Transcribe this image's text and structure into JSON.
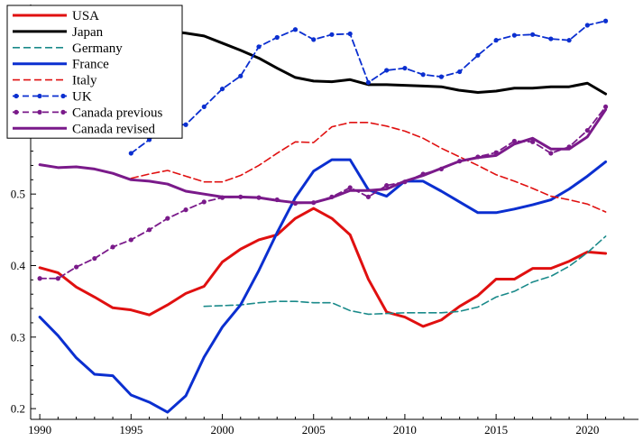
{
  "chart_data": {
    "type": "line",
    "title": "",
    "xlabel": "",
    "ylabel": "",
    "xlim": [
      1989.5,
      2022.8
    ],
    "ylim": [
      0.185,
      0.765
    ],
    "xticks": [
      1990,
      1995,
      2000,
      2005,
      2010,
      2015,
      2020
    ],
    "yticks": [
      0.2,
      0.3,
      0.4,
      0.5,
      0.6,
      0.7
    ],
    "legend_position": "top-left",
    "grid": false,
    "series": [
      {
        "name": "USA",
        "color": "#e01010",
        "style": "solid",
        "width": 3,
        "marker": "none",
        "x": [
          1990,
          1991,
          1992,
          1993,
          1994,
          1995,
          1996,
          1997,
          1998,
          1999,
          2000,
          2001,
          2002,
          2003,
          2004,
          2005,
          2006,
          2007,
          2008,
          2009,
          2010,
          2011,
          2012,
          2013,
          2014,
          2015,
          2016,
          2017,
          2018,
          2019,
          2020,
          2021
        ],
        "y": [
          0.397,
          0.39,
          0.37,
          0.356,
          0.341,
          0.338,
          0.331,
          0.345,
          0.361,
          0.371,
          0.405,
          0.423,
          0.436,
          0.443,
          0.466,
          0.48,
          0.466,
          0.443,
          0.381,
          0.335,
          0.328,
          0.315,
          0.324,
          0.343,
          0.358,
          0.381,
          0.381,
          0.396,
          0.396,
          0.406,
          0.419,
          0.417
        ]
      },
      {
        "name": "Japan",
        "color": "#000000",
        "style": "solid",
        "width": 3,
        "marker": "none",
        "x": [
          1994,
          1995,
          1996,
          1997,
          1998,
          1999,
          2000,
          2001,
          2002,
          2003,
          2004,
          2005,
          2006,
          2007,
          2008,
          2009,
          2010,
          2011,
          2012,
          2013,
          2014,
          2015,
          2016,
          2017,
          2018,
          2019,
          2020,
          2021
        ],
        "y": [
          0.754,
          0.742,
          0.733,
          0.728,
          0.725,
          0.721,
          0.711,
          0.701,
          0.69,
          0.676,
          0.663,
          0.658,
          0.657,
          0.66,
          0.653,
          0.653,
          0.652,
          0.651,
          0.65,
          0.645,
          0.642,
          0.644,
          0.648,
          0.648,
          0.65,
          0.65,
          0.655,
          0.64
        ]
      },
      {
        "name": "Germany",
        "color": "#1a8a8a",
        "style": "dash",
        "width": 1.6,
        "marker": "none",
        "x": [
          1999,
          2000,
          2001,
          2002,
          2003,
          2004,
          2005,
          2006,
          2007,
          2008,
          2009,
          2010,
          2011,
          2012,
          2013,
          2014,
          2015,
          2016,
          2017,
          2018,
          2019,
          2020,
          2021
        ],
        "y": [
          0.343,
          0.344,
          0.345,
          0.348,
          0.35,
          0.35,
          0.348,
          0.348,
          0.337,
          0.332,
          0.333,
          0.334,
          0.334,
          0.334,
          0.336,
          0.342,
          0.356,
          0.364,
          0.377,
          0.385,
          0.399,
          0.418,
          0.441
        ]
      },
      {
        "name": "France",
        "color": "#0b2fd0",
        "style": "solid",
        "width": 3,
        "marker": "none",
        "x": [
          1990,
          1991,
          1992,
          1993,
          1994,
          1995,
          1996,
          1997,
          1998,
          1999,
          2000,
          2001,
          2002,
          2003,
          2004,
          2005,
          2006,
          2007,
          2008,
          2009,
          2010,
          2011,
          2012,
          2013,
          2014,
          2015,
          2016,
          2017,
          2018,
          2019,
          2020,
          2021
        ],
        "y": [
          0.328,
          0.302,
          0.271,
          0.248,
          0.246,
          0.219,
          0.209,
          0.195,
          0.218,
          0.272,
          0.314,
          0.345,
          0.393,
          0.446,
          0.495,
          0.532,
          0.548,
          0.548,
          0.506,
          0.497,
          0.518,
          0.518,
          0.504,
          0.489,
          0.474,
          0.474,
          0.479,
          0.485,
          0.492,
          0.507,
          0.525,
          0.545
        ]
      },
      {
        "name": "Italy",
        "color": "#e01010",
        "style": "dash",
        "width": 1.6,
        "marker": "none",
        "x": [
          1995,
          1996,
          1997,
          1998,
          1999,
          2000,
          2001,
          2002,
          2003,
          2004,
          2005,
          2006,
          2007,
          2008,
          2009,
          2010,
          2011,
          2012,
          2013,
          2014,
          2015,
          2016,
          2017,
          2018,
          2019,
          2020,
          2021
        ],
        "y": [
          0.522,
          0.528,
          0.533,
          0.525,
          0.517,
          0.517,
          0.526,
          0.54,
          0.557,
          0.573,
          0.572,
          0.594,
          0.6,
          0.6,
          0.595,
          0.588,
          0.578,
          0.564,
          0.552,
          0.54,
          0.527,
          0.518,
          0.508,
          0.497,
          0.492,
          0.486,
          0.475
        ]
      },
      {
        "name": "UK",
        "color": "#0b2fd0",
        "style": "dash",
        "width": 1.8,
        "marker": "dot",
        "x": [
          1995,
          1996,
          1997,
          1998,
          1999,
          2000,
          2001,
          2002,
          2003,
          2004,
          2005,
          2006,
          2007,
          2008,
          2009,
          2010,
          2011,
          2012,
          2013,
          2014,
          2015,
          2016,
          2017,
          2018,
          2019,
          2020,
          2021
        ],
        "y": [
          0.557,
          0.576,
          0.597,
          0.597,
          0.622,
          0.647,
          0.665,
          0.706,
          0.719,
          0.73,
          0.716,
          0.723,
          0.724,
          0.656,
          0.673,
          0.676,
          0.667,
          0.664,
          0.671,
          0.694,
          0.715,
          0.722,
          0.723,
          0.717,
          0.715,
          0.736,
          0.742
        ]
      },
      {
        "name": "Canada previous",
        "color": "#7a1a8a",
        "style": "dash",
        "width": 1.8,
        "marker": "dot",
        "x": [
          1990,
          1991,
          1992,
          1993,
          1994,
          1995,
          1996,
          1997,
          1998,
          1999,
          2000,
          2001,
          2002,
          2003,
          2004,
          2005,
          2006,
          2007,
          2008,
          2009,
          2010,
          2011,
          2012,
          2013,
          2014,
          2015,
          2016,
          2017,
          2018,
          2019,
          2020,
          2021
        ],
        "y": [
          0.382,
          0.382,
          0.398,
          0.41,
          0.426,
          0.436,
          0.45,
          0.466,
          0.478,
          0.489,
          0.495,
          0.496,
          0.495,
          0.492,
          0.487,
          0.488,
          0.496,
          0.509,
          0.496,
          0.512,
          0.517,
          0.528,
          0.535,
          0.546,
          0.552,
          0.558,
          0.574,
          0.573,
          0.557,
          0.566,
          0.589,
          0.622
        ]
      },
      {
        "name": "Canada revised",
        "color": "#7a1a8a",
        "style": "solid",
        "width": 3,
        "marker": "none",
        "x": [
          1990,
          1991,
          1992,
          1993,
          1994,
          1995,
          1996,
          1997,
          1998,
          1999,
          2000,
          2001,
          2002,
          2003,
          2004,
          2005,
          2006,
          2007,
          2008,
          2009,
          2010,
          2011,
          2012,
          2013,
          2014,
          2015,
          2016,
          2017,
          2018,
          2019,
          2020,
          2021
        ],
        "y": [
          0.541,
          0.537,
          0.538,
          0.535,
          0.529,
          0.52,
          0.518,
          0.514,
          0.504,
          0.5,
          0.496,
          0.496,
          0.495,
          0.491,
          0.488,
          0.488,
          0.495,
          0.505,
          0.505,
          0.507,
          0.518,
          0.526,
          0.536,
          0.546,
          0.551,
          0.554,
          0.57,
          0.578,
          0.563,
          0.563,
          0.58,
          0.618
        ]
      }
    ]
  }
}
